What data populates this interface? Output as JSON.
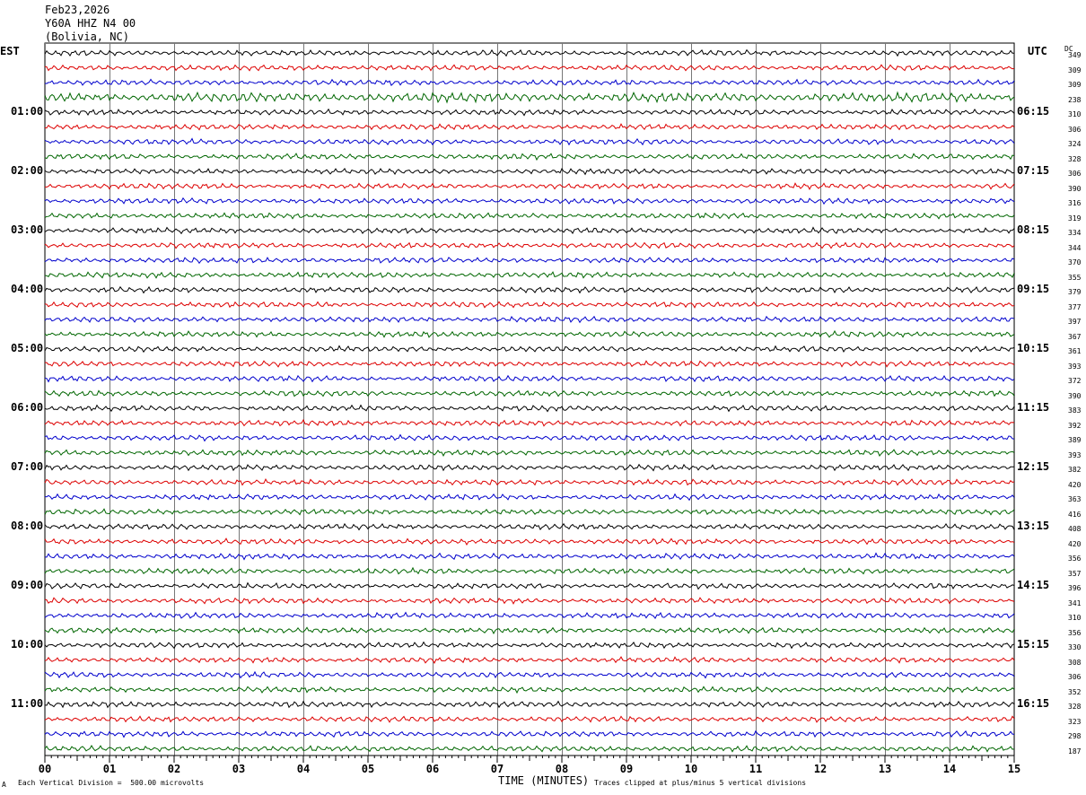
{
  "header": {
    "date": "Feb23,2026",
    "station": "Y60A HHZ N4 00",
    "location": "(Bolivia, NC)"
  },
  "left_tz": "EST",
  "right_tz": "UTC",
  "dc_header": "DC",
  "footer": {
    "division": "Each Vertical Division =  500.00 microvolts",
    "xlabel": "TIME (MINUTES)",
    "clip": "Traces clipped at plus/minus 5 vertical divisions",
    "mark": "A"
  },
  "chart_data": {
    "type": "line",
    "title": "Y60A HHZ N4 00 (Bolivia, NC)",
    "xlabel": "TIME (MINUTES)",
    "xlim": [
      0,
      15
    ],
    "x_ticks": [
      "00",
      "01",
      "02",
      "03",
      "04",
      "05",
      "06",
      "07",
      "08",
      "09",
      "10",
      "11",
      "12",
      "13",
      "14",
      "15"
    ],
    "trace_colors": [
      "#000000",
      "#dd0000",
      "#0000cc",
      "#006600"
    ],
    "left_hour_labels": [
      "01:00",
      "02:00",
      "03:00",
      "04:00",
      "05:00",
      "06:00",
      "07:00",
      "08:00",
      "09:00",
      "10:00",
      "11:00"
    ],
    "right_hour_labels": [
      "06:15",
      "07:15",
      "08:15",
      "09:15",
      "10:15",
      "11:15",
      "12:15",
      "13:15",
      "14:15",
      "15:15",
      "16:15"
    ],
    "dc_offsets": [
      349,
      309,
      309,
      238,
      310,
      306,
      324,
      328,
      306,
      390,
      316,
      319,
      334,
      344,
      370,
      355,
      379,
      377,
      397,
      367,
      361,
      393,
      372,
      390,
      383,
      392,
      389,
      393,
      382,
      420,
      363,
      416,
      408,
      420,
      356,
      357,
      396,
      341,
      310,
      356,
      330,
      308,
      306,
      352,
      328,
      323,
      298,
      187
    ],
    "grid": true
  }
}
